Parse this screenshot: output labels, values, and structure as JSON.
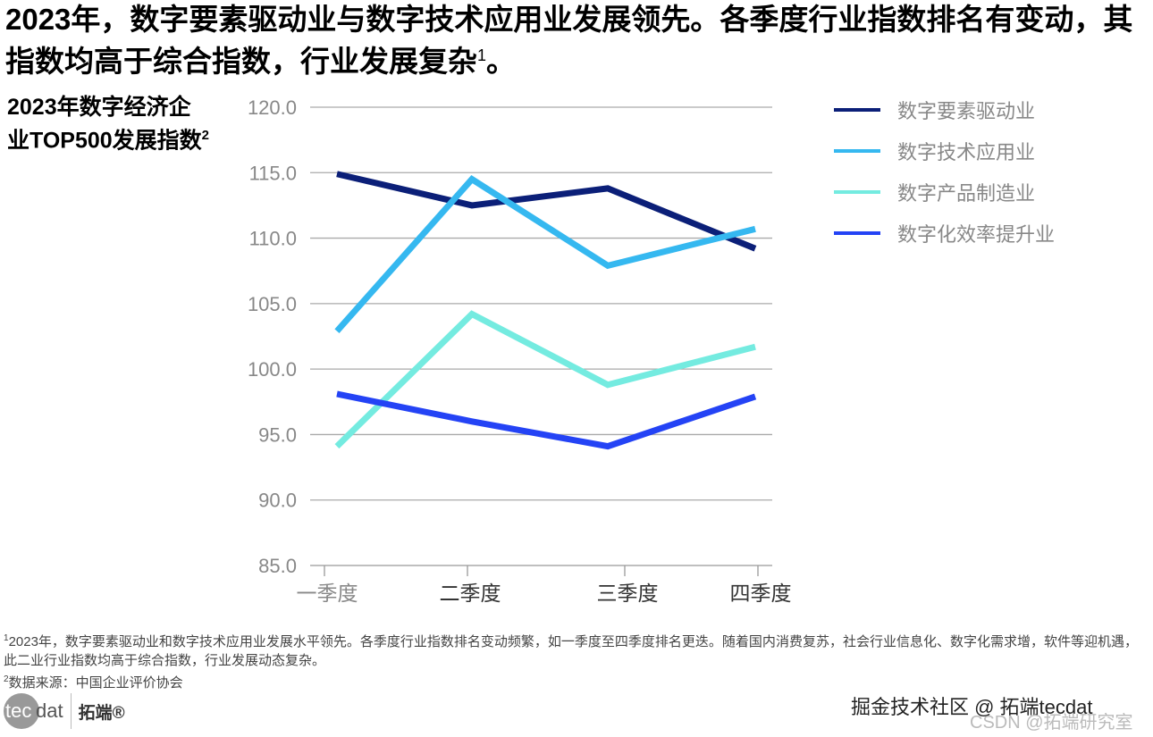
{
  "title": "2023年，数字要素驱动业与数字技术应用业发展领先。各季度行业指数排名有变动，其指数均高于综合指数，行业发展复杂",
  "title_sup": "1",
  "title_end": "。",
  "subtitle": "2023年数字经济企业TOP500发展指数",
  "subtitle_sup": "2",
  "chart_data": {
    "type": "line",
    "categories": [
      "一季度",
      "二季度",
      "三季度",
      "四季度"
    ],
    "ylim": [
      85,
      120
    ],
    "yticks": [
      "85.0",
      "90.0",
      "95.0",
      "100.0",
      "105.0",
      "110.0",
      "115.0",
      "120.0"
    ],
    "grid": true,
    "legend_position": "right",
    "series": [
      {
        "name": "数字要素驱动业",
        "color": "#0b1f78",
        "values": [
          114.9,
          112.5,
          113.8,
          109.2
        ]
      },
      {
        "name": "数字技术应用业",
        "color": "#35b8f0",
        "values": [
          102.9,
          114.5,
          107.9,
          110.7
        ]
      },
      {
        "name": "数字产品制造业",
        "color": "#74ebe0",
        "values": [
          94.1,
          104.2,
          98.8,
          101.7
        ]
      },
      {
        "name": "数字化效率提升业",
        "color": "#2443f5",
        "values": [
          98.1,
          96.0,
          94.1,
          97.9
        ]
      }
    ]
  },
  "footnotes": [
    {
      "sup": "1",
      "text": "2023年，数字要素驱动业和数字技术应用业发展水平领先。各季度行业指数排名变动频繁，如一季度至四季度排名更迭。随着国内消费复苏，社会行业信息化、数字化需求增，软件等迎机遇，此二业行业指数均高于综合指数，行业发展动态复杂。"
    },
    {
      "sup": "2",
      "text": "数据来源：中国企业评价协会"
    }
  ],
  "logo": {
    "circle": "tec",
    "rest": "dat",
    "cn": "拓端®"
  },
  "watermarks": [
    "掘金技术社区 @ 拓端tecdat",
    "CSDN @拓端研究室"
  ]
}
